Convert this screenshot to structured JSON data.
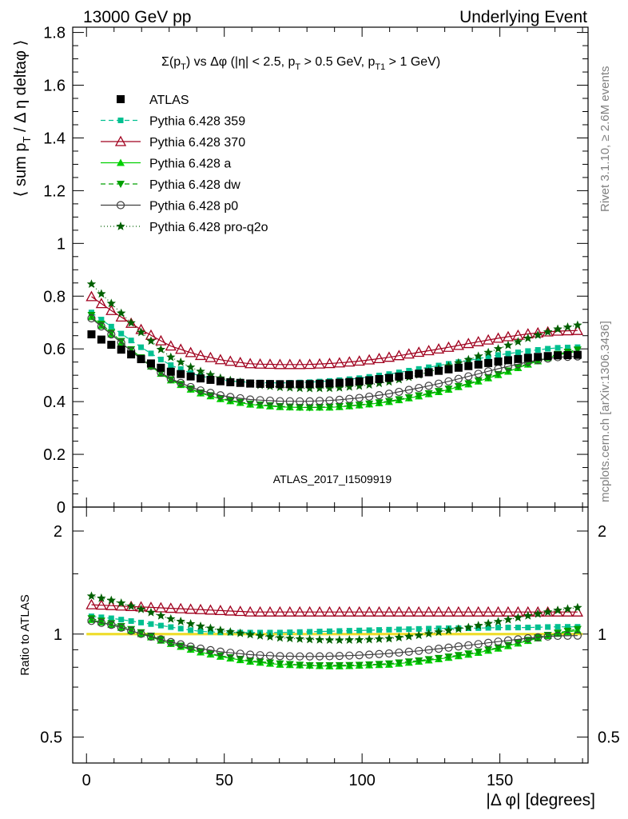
{
  "header": {
    "left_label": "13000 GeV pp",
    "right_label": "Underlying Event"
  },
  "side_labels": {
    "rivet": "Rivet 3.1.10, ≥ 2.6M events",
    "mcplots": "mcplots.cern.ch [arXiv:1306.3436]"
  },
  "chart_data": {
    "type": "scatter",
    "title": "Σ(p_T) vs Δφ (|η| < 2.5, p_T > 0.5 GeV, p_T1 > 1 GeV)",
    "title_parts": {
      "a": "Σ(p",
      "a_sub": "T",
      "b": ") vs Δφ (|η| < 2.5, p",
      "b_sub": "T",
      "c": " > 0.5 GeV, p",
      "c_sub": "T1",
      "d": " > 1 GeV)"
    },
    "analysis_label": "ATLAS_2017_I1509919",
    "ylabel_parts": {
      "a": "⟨ sum p",
      "a_sub": "T",
      "b": " / Δ η deltaφ ⟩"
    },
    "xlabel": "|Δ φ| [degrees]",
    "ratio_ylabel": "Ratio to ATLAS",
    "xlim": [
      -5,
      182
    ],
    "ylim": [
      0,
      1.82
    ],
    "ratio_ylim": [
      0.42,
      2.35
    ],
    "ratio_log": true,
    "x_ticks": [
      0,
      50,
      100,
      150
    ],
    "y_ticks": [
      0,
      0.2,
      0.4,
      0.6,
      0.8,
      1,
      1.2,
      1.4,
      1.6,
      1.8
    ],
    "y_tick_labels": [
      "0",
      "0.2",
      "0.4",
      "0.6",
      "0.8",
      "1",
      "1.2",
      "1.4",
      "1.6",
      "1.8"
    ],
    "ratio_ticks": [
      0.5,
      1,
      2
    ],
    "ratio_tick_labels": [
      "0.5",
      "1",
      "2"
    ],
    "legend_position": "top-left",
    "x_start": 1.8,
    "x_step": 3.6,
    "n_points": 50,
    "reference": {
      "name": "ATLAS",
      "color": "#000000",
      "marker": "square",
      "anchors": [
        [
          0,
          0.665
        ],
        [
          10,
          0.61
        ],
        [
          20,
          0.56
        ],
        [
          30,
          0.515
        ],
        [
          40,
          0.49
        ],
        [
          50,
          0.475
        ],
        [
          60,
          0.468
        ],
        [
          70,
          0.466
        ],
        [
          80,
          0.466
        ],
        [
          90,
          0.47
        ],
        [
          100,
          0.478
        ],
        [
          110,
          0.49
        ],
        [
          120,
          0.505
        ],
        [
          130,
          0.52
        ],
        [
          140,
          0.537
        ],
        [
          150,
          0.553
        ],
        [
          160,
          0.566
        ],
        [
          170,
          0.575
        ],
        [
          180,
          0.578
        ]
      ]
    },
    "series": [
      {
        "name": "Pythia 6.428 359",
        "color": "#00c090",
        "marker": "square-small",
        "dash": "6,4",
        "anchors": [
          [
            0,
            1.13
          ],
          [
            10,
            1.11
          ],
          [
            20,
            1.08
          ],
          [
            30,
            1.05
          ],
          [
            40,
            1.02
          ],
          [
            50,
            1.01
          ],
          [
            60,
            1.01
          ],
          [
            70,
            1.01
          ],
          [
            80,
            1.015
          ],
          [
            90,
            1.02
          ],
          [
            100,
            1.025
          ],
          [
            110,
            1.03
          ],
          [
            120,
            1.035
          ],
          [
            130,
            1.04
          ],
          [
            140,
            1.04
          ],
          [
            150,
            1.045
          ],
          [
            160,
            1.045
          ],
          [
            170,
            1.05
          ],
          [
            180,
            1.05
          ]
        ]
      },
      {
        "name": "Pythia 6.428 370",
        "color": "#a0001e",
        "marker": "triangle-open",
        "dash": "",
        "anchors": [
          [
            0,
            1.22
          ],
          [
            10,
            1.21
          ],
          [
            20,
            1.2
          ],
          [
            30,
            1.19
          ],
          [
            40,
            1.18
          ],
          [
            50,
            1.17
          ],
          [
            60,
            1.16
          ],
          [
            70,
            1.16
          ],
          [
            80,
            1.16
          ],
          [
            90,
            1.16
          ],
          [
            100,
            1.16
          ],
          [
            110,
            1.16
          ],
          [
            120,
            1.16
          ],
          [
            130,
            1.16
          ],
          [
            140,
            1.16
          ],
          [
            150,
            1.16
          ],
          [
            160,
            1.16
          ],
          [
            170,
            1.16
          ],
          [
            180,
            1.16
          ]
        ]
      },
      {
        "name": "Pythia 6.428 a",
        "color": "#00d000",
        "marker": "triangle",
        "dash": "",
        "anchors": [
          [
            0,
            1.11
          ],
          [
            10,
            1.06
          ],
          [
            20,
            1.0
          ],
          [
            30,
            0.94
          ],
          [
            40,
            0.89
          ],
          [
            50,
            0.855
          ],
          [
            60,
            0.83
          ],
          [
            70,
            0.815
          ],
          [
            80,
            0.81
          ],
          [
            90,
            0.805
          ],
          [
            100,
            0.81
          ],
          [
            110,
            0.815
          ],
          [
            120,
            0.83
          ],
          [
            130,
            0.85
          ],
          [
            140,
            0.875
          ],
          [
            150,
            0.91
          ],
          [
            160,
            0.955
          ],
          [
            170,
            1.0
          ],
          [
            180,
            1.03
          ]
        ]
      },
      {
        "name": "Pythia 6.428 dw",
        "color": "#00a000",
        "marker": "triangle-down",
        "dash": "6,4",
        "anchors": [
          [
            0,
            1.12
          ],
          [
            10,
            1.07
          ],
          [
            20,
            1.01
          ],
          [
            30,
            0.945
          ],
          [
            40,
            0.895
          ],
          [
            50,
            0.86
          ],
          [
            60,
            0.835
          ],
          [
            70,
            0.82
          ],
          [
            80,
            0.81
          ],
          [
            90,
            0.81
          ],
          [
            100,
            0.812
          ],
          [
            110,
            0.82
          ],
          [
            120,
            0.835
          ],
          [
            130,
            0.855
          ],
          [
            140,
            0.88
          ],
          [
            150,
            0.915
          ],
          [
            160,
            0.96
          ],
          [
            170,
            1.005
          ],
          [
            180,
            1.04
          ]
        ]
      },
      {
        "name": "Pythia 6.428 p0",
        "color": "#404040",
        "marker": "circle-open",
        "dash": "",
        "anchors": [
          [
            0,
            1.1
          ],
          [
            10,
            1.06
          ],
          [
            20,
            1.0
          ],
          [
            30,
            0.95
          ],
          [
            40,
            0.91
          ],
          [
            50,
            0.885
          ],
          [
            60,
            0.87
          ],
          [
            70,
            0.862
          ],
          [
            80,
            0.86
          ],
          [
            90,
            0.862
          ],
          [
            100,
            0.868
          ],
          [
            110,
            0.878
          ],
          [
            120,
            0.892
          ],
          [
            130,
            0.91
          ],
          [
            140,
            0.93
          ],
          [
            150,
            0.952
          ],
          [
            160,
            0.972
          ],
          [
            170,
            0.988
          ],
          [
            180,
            0.99
          ]
        ]
      },
      {
        "name": "Pythia 6.428 pro-q2o",
        "color": "#006000",
        "marker": "star",
        "dash": "1,3",
        "anchors": [
          [
            0,
            1.3
          ],
          [
            10,
            1.25
          ],
          [
            20,
            1.18
          ],
          [
            30,
            1.11
          ],
          [
            40,
            1.06
          ],
          [
            50,
            1.02
          ],
          [
            60,
            0.995
          ],
          [
            70,
            0.975
          ],
          [
            80,
            0.965
          ],
          [
            90,
            0.96
          ],
          [
            100,
            0.962
          ],
          [
            110,
            0.97
          ],
          [
            120,
            0.99
          ],
          [
            130,
            1.02
          ],
          [
            140,
            1.05
          ],
          [
            150,
            1.09
          ],
          [
            160,
            1.13
          ],
          [
            170,
            1.17
          ],
          [
            180,
            1.2
          ]
        ]
      }
    ]
  }
}
